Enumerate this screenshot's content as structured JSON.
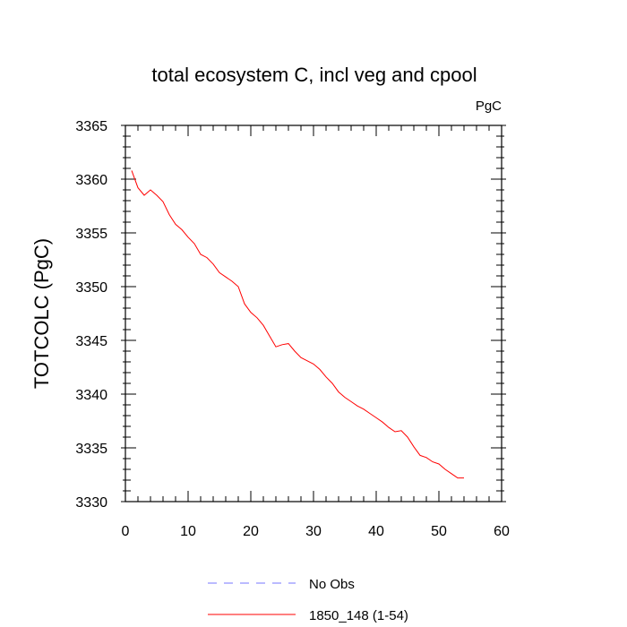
{
  "chart_data": {
    "type": "line",
    "title": "total ecosystem C, incl veg and cpool",
    "units_label": "PgC",
    "ylabel": "TOTCOLC  (PgC)",
    "xlabel": "",
    "xlim": [
      0,
      60
    ],
    "ylim": [
      3330,
      3365
    ],
    "x_ticks": [
      0,
      10,
      20,
      30,
      40,
      50,
      60
    ],
    "y_ticks": [
      3330,
      3335,
      3340,
      3345,
      3350,
      3355,
      3360,
      3365
    ],
    "grid": false,
    "legend_position": "bottom-center",
    "series": [
      {
        "name": "1850_148 (1-54)",
        "color": "#ff0000",
        "style": "solid",
        "x": [
          1,
          2,
          3,
          4,
          5,
          6,
          7,
          8,
          9,
          10,
          11,
          12,
          13,
          14,
          15,
          16,
          17,
          18,
          19,
          20,
          21,
          22,
          23,
          24,
          25,
          26,
          27,
          28,
          29,
          30,
          31,
          32,
          33,
          34,
          35,
          36,
          37,
          38,
          39,
          40,
          41,
          42,
          43,
          44,
          45,
          46,
          47,
          48,
          49,
          50,
          51,
          52,
          53,
          54
        ],
        "y": [
          3360.8,
          3359.2,
          3358.5,
          3359.0,
          3358.5,
          3357.9,
          3356.7,
          3355.8,
          3355.3,
          3354.6,
          3354.0,
          3353.0,
          3352.7,
          3352.1,
          3351.3,
          3350.9,
          3350.5,
          3350.0,
          3348.4,
          3347.6,
          3347.1,
          3346.4,
          3345.4,
          3344.4,
          3344.6,
          3344.7,
          3344.0,
          3343.4,
          3343.1,
          3342.8,
          3342.3,
          3341.6,
          3341.0,
          3340.2,
          3339.7,
          3339.3,
          3338.9,
          3338.6,
          3338.2,
          3337.8,
          3337.4,
          3336.9,
          3336.5,
          3336.6,
          3336.0,
          3335.1,
          3334.3,
          3334.1,
          3333.7,
          3333.5,
          3333.0,
          3332.6,
          3332.2,
          3332.2
        ]
      },
      {
        "name": "No Obs",
        "color": "#7777ff",
        "style": "dashed",
        "x": [],
        "y": []
      }
    ]
  }
}
